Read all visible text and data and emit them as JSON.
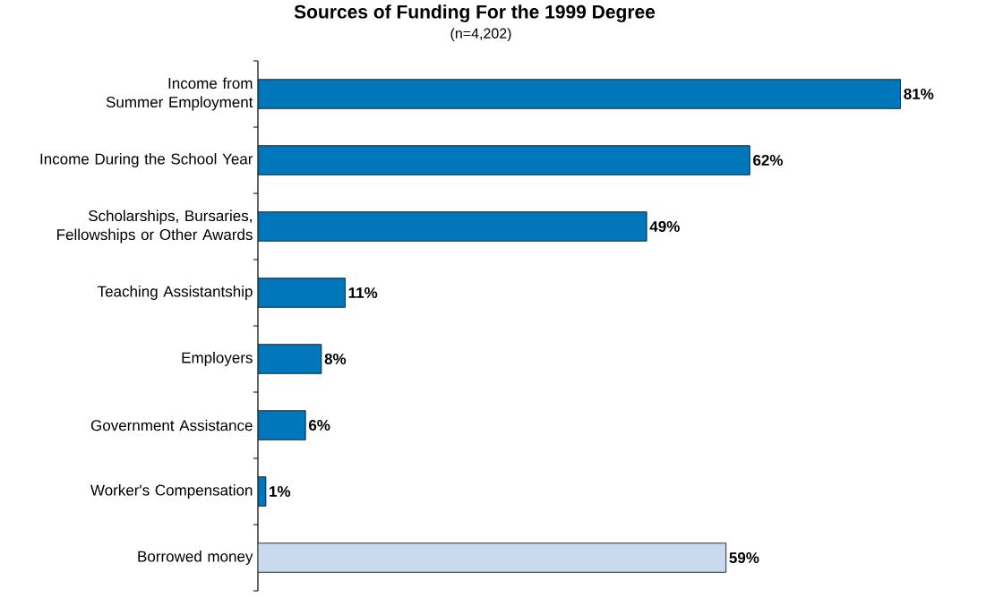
{
  "chart_data": {
    "type": "bar",
    "orientation": "horizontal",
    "title": "Sources of Funding For the 1999 Degree",
    "subtitle": "(n=4,202)",
    "categories": [
      "Income from Summer Employment",
      "Income During the School Year",
      "Scholarships, Bursaries, Fellowships or Other Awards",
      "Teaching Assistantship",
      "Employers",
      "Government Assistance",
      "Worker's Compensation",
      "Borrowed money"
    ],
    "values": [
      81,
      62,
      49,
      11,
      8,
      6,
      1,
      59
    ],
    "colors": [
      "#0077bb",
      "#0077bb",
      "#0077bb",
      "#0077bb",
      "#0077bb",
      "#0077bb",
      "#0077bb",
      "#c9d9ee"
    ],
    "value_labels": [
      "81%",
      "62%",
      "49%",
      "11%",
      "8%",
      "6%",
      "1%",
      "59%"
    ],
    "relative": false
  }
}
